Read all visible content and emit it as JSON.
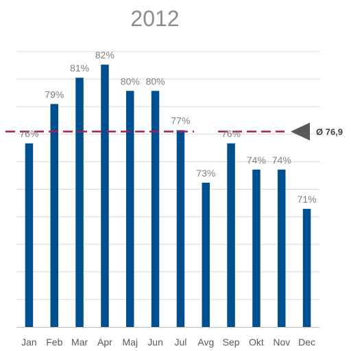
{
  "chart_data": {
    "type": "bar",
    "title": "2012",
    "categories": [
      "Jan",
      "Feb",
      "Mar",
      "Apr",
      "Maj",
      "Jun",
      "Jul",
      "Avg",
      "Sep",
      "Okt",
      "Nov",
      "Dec"
    ],
    "values": [
      76,
      79,
      81,
      82,
      80,
      80,
      77,
      73,
      76,
      74,
      74,
      71
    ],
    "value_labels": [
      "76%",
      "79%",
      "81%",
      "82%",
      "80%",
      "80%",
      "77%",
      "73%",
      "76%",
      "74%",
      "74%",
      "71%"
    ],
    "ylim": [
      62,
      83
    ],
    "grid": true,
    "legend": "none",
    "average": {
      "value": 76.9,
      "label": "Ø 76,9"
    },
    "colors": {
      "bar": "#00508f",
      "average_line": "#a6204f",
      "average_marker": "#595959",
      "grid": "#d9d9d9",
      "axis": "#bfbfbf"
    }
  }
}
